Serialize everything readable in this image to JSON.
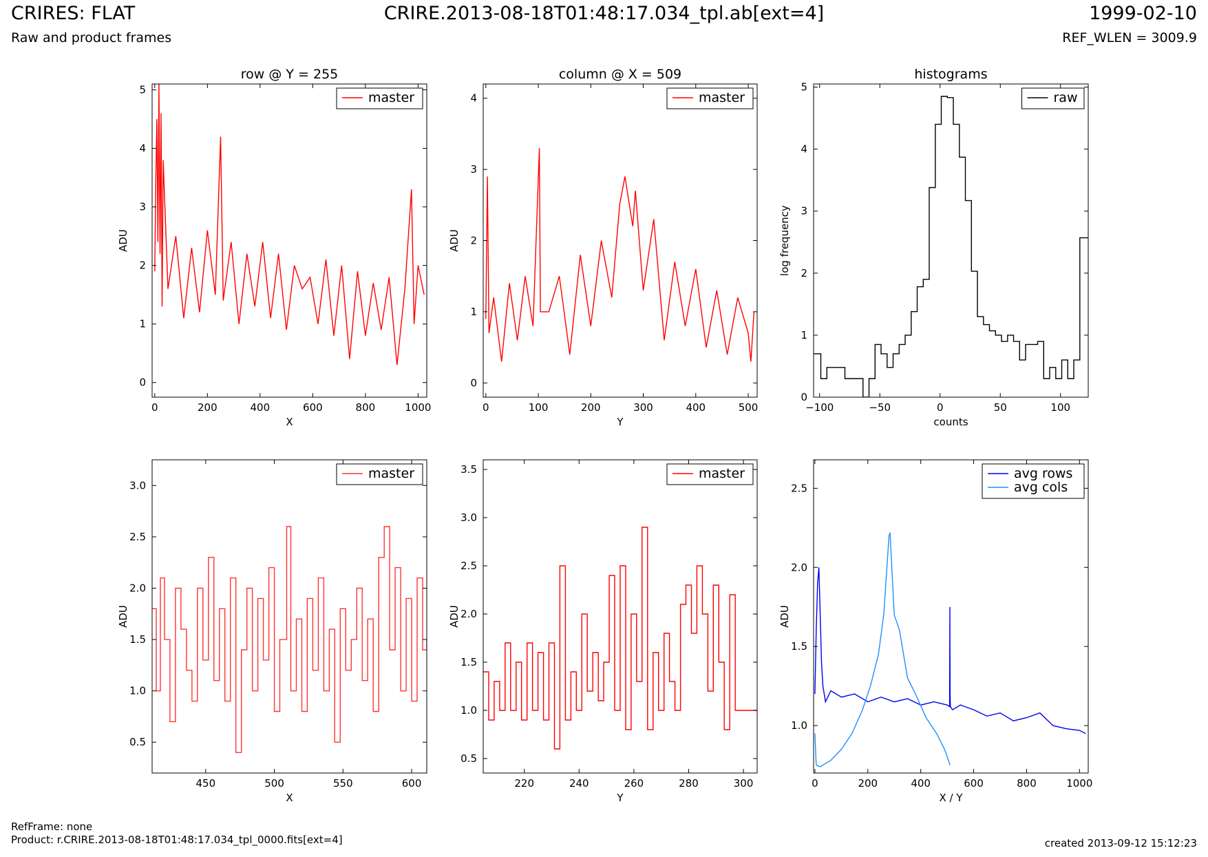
{
  "header": {
    "title_left": "CRIRES: FLAT",
    "subtitle_left": "Raw and product frames",
    "title_center": "CRIRE.2013-08-18T01:48:17.034_tpl.ab[ext=4]",
    "title_right": "1999-02-10",
    "subtitle_right": "REF_WLEN = 3009.9"
  },
  "footer": {
    "refframe": "RefFrame: none",
    "product": "Product: r.CRIRE.2013-08-18T01:48:17.034_tpl_0000.fits[ext=4]",
    "created": "created 2013-09-12 15:12:23"
  },
  "colors": {
    "master": "#ff0000",
    "master_zoom": "#ff3333",
    "raw": "#000000",
    "avg_rows": "#0000ee",
    "avg_cols": "#1e90ff"
  },
  "chart_data": [
    {
      "type": "line",
      "title": "row @ Y = 255",
      "xlabel": "X",
      "ylabel": "ADU",
      "xlim": [
        -10,
        1033
      ],
      "ylim": [
        -0.25,
        5.1
      ],
      "xticks": [
        "0",
        "200",
        "400",
        "600",
        "800",
        "1000"
      ],
      "xtick_values": [
        0,
        200,
        400,
        600,
        800,
        1000
      ],
      "yticks": [
        "0",
        "1",
        "2",
        "3",
        "4",
        "5"
      ],
      "ytick_values": [
        0,
        1,
        2,
        3,
        4,
        5
      ],
      "legend": "top-right",
      "step": false,
      "series": [
        {
          "name": "master",
          "color": "#ff0000",
          "x": [
            0,
            4,
            8,
            12,
            16,
            20,
            24,
            28,
            32,
            50,
            80,
            110,
            140,
            170,
            200,
            230,
            250,
            260,
            290,
            320,
            350,
            380,
            410,
            440,
            470,
            500,
            530,
            560,
            590,
            620,
            650,
            680,
            710,
            740,
            770,
            800,
            830,
            860,
            890,
            920,
            950,
            975,
            985,
            1000,
            1023
          ],
          "y": [
            1.9,
            3.5,
            4.5,
            2.4,
            5.1,
            2.2,
            4.6,
            1.3,
            3.8,
            1.6,
            2.5,
            1.1,
            2.3,
            1.2,
            2.6,
            1.5,
            4.2,
            1.4,
            2.4,
            1.0,
            2.2,
            1.3,
            2.4,
            1.1,
            2.2,
            0.9,
            2.0,
            1.6,
            1.8,
            1.0,
            2.1,
            0.8,
            2.0,
            0.4,
            1.9,
            0.8,
            1.7,
            0.9,
            1.8,
            0.3,
            1.6,
            3.3,
            1.0,
            2.0,
            1.5
          ]
        }
      ]
    },
    {
      "type": "line",
      "title": "column @ X = 509",
      "xlabel": "Y",
      "ylabel": "ADU",
      "xlim": [
        -5,
        517
      ],
      "ylim": [
        -0.2,
        4.2
      ],
      "xticks": [
        "0",
        "100",
        "200",
        "300",
        "400",
        "500"
      ],
      "xtick_values": [
        0,
        100,
        200,
        300,
        400,
        500
      ],
      "yticks": [
        "0",
        "1",
        "2",
        "3",
        "4"
      ],
      "ytick_values": [
        0,
        1,
        2,
        3,
        4
      ],
      "legend": "top-right",
      "step": false,
      "series": [
        {
          "name": "master",
          "color": "#ff0000",
          "x": [
            0,
            3,
            6,
            15,
            30,
            45,
            60,
            75,
            90,
            102,
            104,
            120,
            140,
            160,
            180,
            200,
            220,
            240,
            255,
            265,
            280,
            285,
            300,
            320,
            340,
            360,
            380,
            400,
            420,
            440,
            460,
            480,
            500,
            505,
            511
          ],
          "y": [
            0.9,
            2.9,
            0.7,
            1.2,
            0.3,
            1.4,
            0.6,
            1.5,
            0.8,
            3.3,
            1.0,
            1.0,
            1.5,
            0.4,
            1.8,
            0.8,
            2.0,
            1.2,
            2.5,
            2.9,
            2.2,
            2.7,
            1.3,
            2.3,
            0.6,
            1.7,
            0.8,
            1.6,
            0.5,
            1.3,
            0.4,
            1.2,
            0.7,
            0.3,
            1.0
          ]
        }
      ]
    },
    {
      "type": "line",
      "title": "histograms",
      "xlabel": "counts",
      "ylabel": "log frequency",
      "xlim": [
        -105,
        123
      ],
      "ylim": [
        0,
        5.05
      ],
      "xticks": [
        "−100",
        "−50",
        "0",
        "50",
        "100"
      ],
      "xtick_values": [
        -100,
        -50,
        0,
        50,
        100
      ],
      "yticks": [
        "0",
        "1",
        "2",
        "3",
        "4",
        "5"
      ],
      "ytick_values": [
        0,
        1,
        2,
        3,
        4,
        5
      ],
      "legend": "top-right",
      "step": true,
      "series": [
        {
          "name": "raw",
          "color": "#000000",
          "x": [
            -105,
            -99,
            -94,
            -89,
            -79,
            -69,
            -64,
            -59,
            -54,
            -49,
            -44,
            -39,
            -34,
            -29,
            -24,
            -19,
            -14,
            -9,
            -4,
            1,
            6,
            11,
            16,
            21,
            26,
            31,
            36,
            41,
            46,
            51,
            56,
            61,
            66,
            71,
            76,
            81,
            86,
            91,
            96,
            101,
            106,
            111,
            116,
            123
          ],
          "y": [
            0.7,
            0.3,
            0.48,
            0.48,
            0.3,
            0.3,
            0.0,
            0.3,
            0.85,
            0.7,
            0.48,
            0.7,
            0.85,
            1.0,
            1.38,
            1.78,
            1.9,
            3.38,
            4.4,
            4.85,
            4.83,
            4.4,
            3.87,
            3.17,
            2.03,
            1.3,
            1.17,
            1.07,
            1.0,
            0.9,
            1.0,
            0.9,
            0.6,
            0.85,
            0.85,
            0.9,
            0.3,
            0.48,
            0.3,
            0.6,
            0.3,
            0.6,
            2.57,
            2.57
          ]
        }
      ]
    },
    {
      "type": "line",
      "title": "",
      "xlabel": "X",
      "ylabel": "ADU",
      "xlim": [
        411,
        611
      ],
      "ylim": [
        0.2,
        3.25
      ],
      "xticks": [
        "450",
        "500",
        "550",
        "600"
      ],
      "xtick_values": [
        450,
        500,
        550,
        600
      ],
      "yticks": [
        "0.5",
        "1.0",
        "1.5",
        "2.0",
        "2.5",
        "3.0"
      ],
      "ytick_values": [
        0.5,
        1.0,
        1.5,
        2.0,
        2.5,
        3.0
      ],
      "legend": "top-right",
      "step": true,
      "series": [
        {
          "name": "master",
          "color": "#ff3333",
          "x": [
            411,
            414,
            417,
            420,
            424,
            428,
            432,
            436,
            440,
            444,
            448,
            452,
            456,
            460,
            464,
            468,
            472,
            476,
            480,
            484,
            488,
            492,
            496,
            500,
            504,
            509,
            512,
            516,
            520,
            524,
            528,
            532,
            536,
            540,
            544,
            548,
            552,
            556,
            560,
            564,
            568,
            572,
            576,
            580,
            584,
            588,
            592,
            596,
            600,
            604,
            608,
            611
          ],
          "y": [
            1.8,
            1.0,
            2.1,
            1.5,
            0.7,
            2.0,
            1.6,
            1.2,
            0.9,
            2.0,
            1.3,
            2.3,
            1.1,
            1.8,
            0.9,
            2.1,
            0.4,
            1.4,
            2.0,
            1.0,
            1.9,
            1.3,
            2.2,
            0.8,
            1.5,
            2.6,
            1.0,
            1.7,
            0.8,
            1.9,
            1.2,
            2.1,
            1.0,
            1.6,
            0.5,
            1.8,
            1.2,
            1.5,
            2.0,
            1.1,
            1.7,
            0.8,
            2.3,
            2.6,
            1.4,
            2.2,
            1.0,
            1.9,
            0.9,
            2.1,
            1.4,
            1.5
          ]
        }
      ]
    },
    {
      "type": "line",
      "title": "",
      "xlabel": "Y",
      "ylabel": "ADU",
      "xlim": [
        205,
        305
      ],
      "ylim": [
        0.35,
        3.6
      ],
      "xticks": [
        "220",
        "240",
        "260",
        "280",
        "300"
      ],
      "xtick_values": [
        220,
        240,
        260,
        280,
        300
      ],
      "yticks": [
        "0.5",
        "1.0",
        "1.5",
        "2.0",
        "2.5",
        "3.0",
        "3.5"
      ],
      "ytick_values": [
        0.5,
        1.0,
        1.5,
        2.0,
        2.5,
        3.0,
        3.5
      ],
      "legend": "top-right",
      "step": true,
      "series": [
        {
          "name": "master",
          "color": "#ff0000",
          "x": [
            205,
            207,
            209,
            211,
            213,
            215,
            217,
            219,
            221,
            223,
            225,
            227,
            229,
            231,
            233,
            235,
            237,
            239,
            241,
            243,
            245,
            247,
            249,
            251,
            253,
            255,
            257,
            259,
            261,
            263,
            265,
            267,
            269,
            271,
            273,
            275,
            277,
            279,
            281,
            283,
            285,
            287,
            289,
            291,
            293,
            295,
            297,
            299,
            301,
            305
          ],
          "y": [
            1.4,
            0.9,
            1.3,
            1.0,
            1.7,
            1.0,
            1.5,
            0.9,
            1.7,
            1.0,
            1.6,
            0.9,
            1.7,
            0.6,
            2.5,
            0.9,
            1.4,
            1.0,
            2.0,
            1.2,
            1.6,
            1.1,
            1.5,
            2.4,
            1.0,
            2.5,
            0.8,
            2.0,
            1.3,
            2.9,
            0.8,
            1.6,
            1.0,
            1.8,
            1.3,
            1.0,
            2.1,
            2.3,
            1.8,
            2.5,
            2.0,
            1.2,
            2.3,
            1.5,
            0.8,
            2.2,
            1.0,
            1.0,
            1.0,
            1.0
          ]
        }
      ]
    },
    {
      "type": "line",
      "title": "",
      "xlabel": "X / Y",
      "ylabel": "ADU",
      "xlim": [
        -5,
        1033
      ],
      "ylim": [
        0.7,
        2.68
      ],
      "xticks": [
        "0",
        "200",
        "400",
        "600",
        "800",
        "1000"
      ],
      "xtick_values": [
        0,
        200,
        400,
        600,
        800,
        1000
      ],
      "yticks": [
        "1.0",
        "1.5",
        "2.0",
        "2.5"
      ],
      "ytick_values": [
        1.0,
        1.5,
        2.0,
        2.5
      ],
      "legend": "top-right",
      "step": false,
      "series": [
        {
          "name": "avg rows",
          "color": "#0000ee",
          "x": [
            0,
            5,
            10,
            15,
            20,
            25,
            30,
            40,
            60,
            100,
            150,
            200,
            250,
            300,
            350,
            400,
            450,
            500,
            509,
            510,
            511,
            512,
            520,
            550,
            600,
            650,
            700,
            750,
            800,
            850,
            900,
            950,
            1000,
            1023
          ],
          "y": [
            1.2,
            1.6,
            1.9,
            2.0,
            1.7,
            1.4,
            1.25,
            1.15,
            1.22,
            1.18,
            1.2,
            1.15,
            1.18,
            1.15,
            1.17,
            1.13,
            1.15,
            1.13,
            1.12,
            1.75,
            1.2,
            1.12,
            1.1,
            1.13,
            1.1,
            1.06,
            1.08,
            1.03,
            1.05,
            1.08,
            1.0,
            0.98,
            0.97,
            0.95
          ]
        },
        {
          "name": "avg cols",
          "color": "#1e90ff",
          "x": [
            0,
            5,
            20,
            60,
            100,
            140,
            180,
            210,
            240,
            260,
            272,
            280,
            284,
            292,
            300,
            310,
            320,
            335,
            350,
            380,
            420,
            460,
            490,
            511
          ],
          "y": [
            0.95,
            0.75,
            0.74,
            0.78,
            0.85,
            0.95,
            1.1,
            1.25,
            1.45,
            1.7,
            2.0,
            2.2,
            2.22,
            1.95,
            1.7,
            1.65,
            1.6,
            1.45,
            1.3,
            1.2,
            1.05,
            0.95,
            0.85,
            0.75
          ]
        }
      ]
    }
  ]
}
